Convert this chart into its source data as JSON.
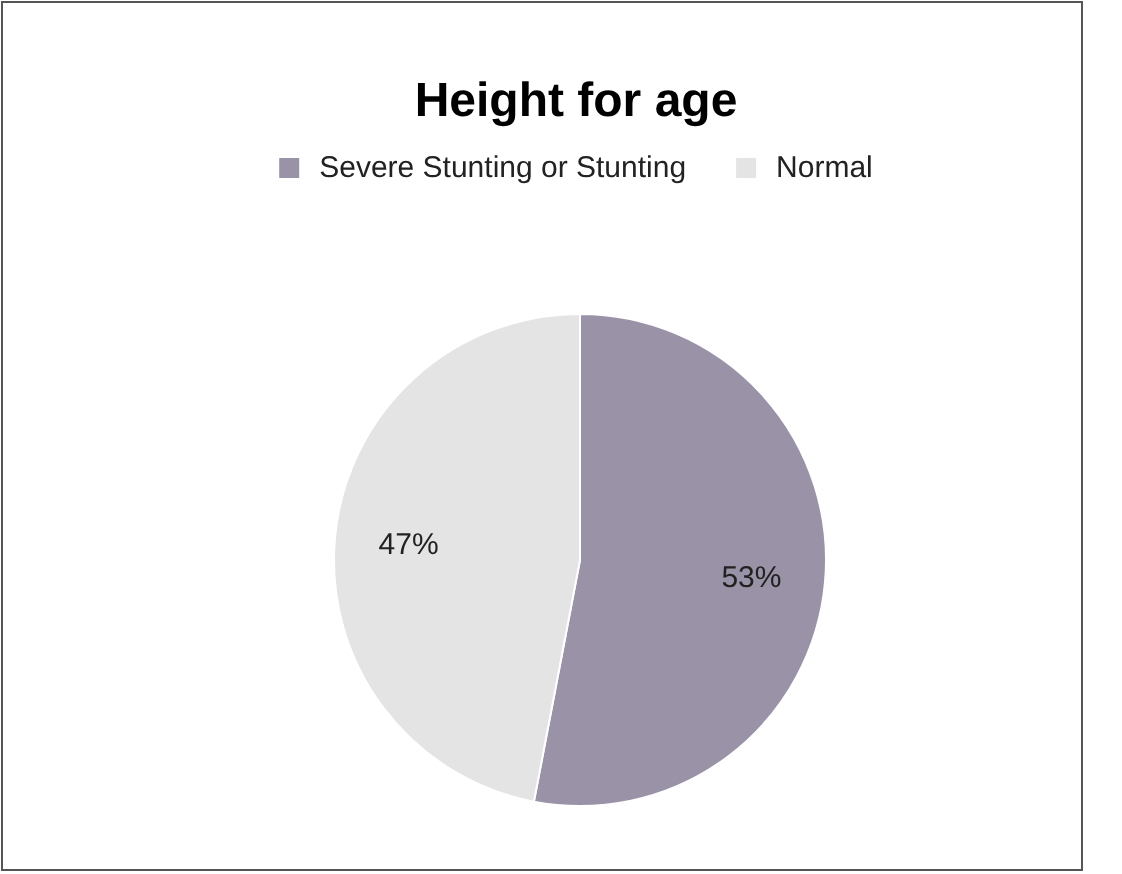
{
  "chart_data": {
    "type": "pie",
    "title": "Height for age",
    "categories": [
      "Severe Stunting or  Stunting",
      "Normal"
    ],
    "values": [
      53,
      47
    ],
    "value_labels": [
      "53%",
      "47%"
    ],
    "colors": [
      "#9a93a8",
      "#e4e4e4"
    ],
    "legend": "top"
  }
}
